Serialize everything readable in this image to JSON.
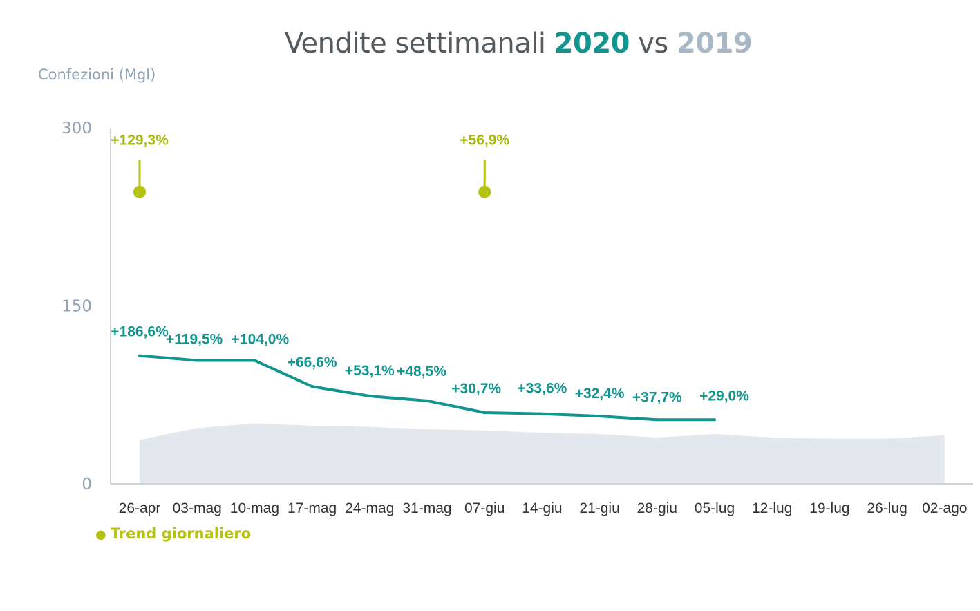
{
  "title": {
    "prefix": "Vendite settimanali ",
    "year_a": "2020",
    "middle": " vs ",
    "year_b": "2019"
  },
  "legend": {
    "label": "Trend giornaliero"
  },
  "colors": {
    "series_2020": "#12948f",
    "series_2019": "#e3e8ee",
    "trend": "#b5c20f",
    "axis": "#d0d4d8"
  },
  "chart_data": {
    "type": "line",
    "title": "Vendite settimanali 2020 vs 2019",
    "ylabel": "Confezioni (Mgl)",
    "xlabel": "",
    "ylim": [
      0,
      300
    ],
    "yticks": [
      0,
      150,
      300
    ],
    "grid": false,
    "legend_position": "bottom-left",
    "categories": [
      "26-apr",
      "03-mag",
      "10-mag",
      "17-mag",
      "24-mag",
      "31-mag",
      "07-giu",
      "14-giu",
      "21-giu",
      "28-giu",
      "05-lug",
      "12-lug",
      "19-lug",
      "26-lug",
      "02-ago"
    ],
    "series": [
      {
        "name": "2020",
        "type": "line",
        "values": [
          108,
          104,
          104,
          82,
          74,
          70,
          60,
          59,
          57,
          54,
          54,
          null,
          null,
          null,
          null
        ],
        "data_labels": [
          "+186,6%",
          "+119,5%",
          "+104,0%",
          "+66,6%",
          "+53,1%",
          "+48,5%",
          "+30,7%",
          "+33,6%",
          "+32,4%",
          "+37,7%",
          "+29,0%",
          null,
          null,
          null,
          null
        ]
      },
      {
        "name": "2019",
        "type": "area",
        "values": [
          37,
          47,
          51,
          49,
          48,
          46,
          45,
          43,
          42,
          39,
          42,
          39,
          38,
          38,
          41
        ]
      }
    ],
    "annotations": [
      {
        "category": "26-apr",
        "value": 246,
        "label": "+129,3%"
      },
      {
        "category": "07-giu",
        "value": 246,
        "label": "+56,9%"
      }
    ]
  }
}
